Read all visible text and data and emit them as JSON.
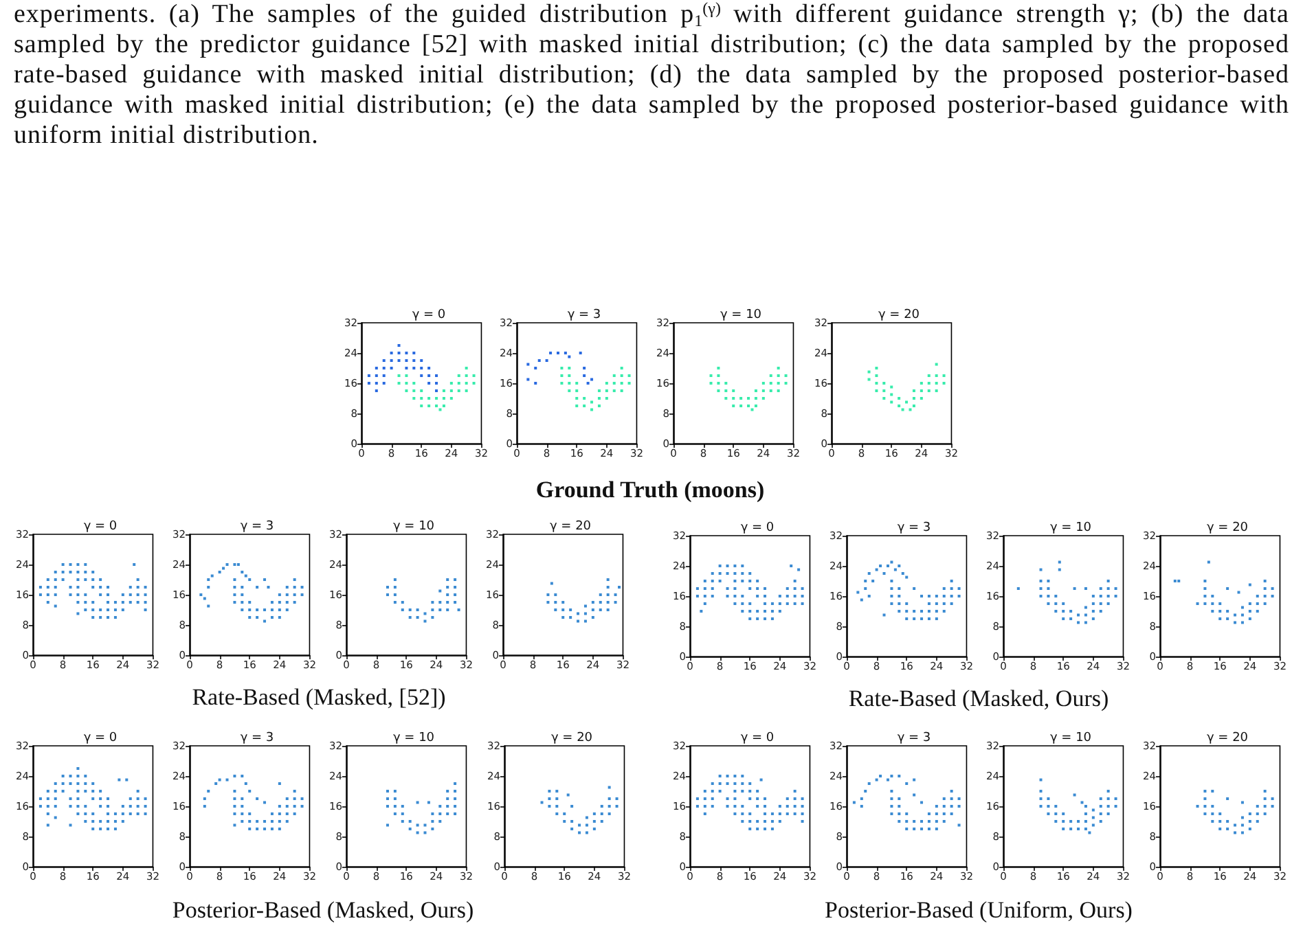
{
  "chart_data": [
    {
      "type": "other",
      "annotations": [
        "experiments. (a) The samples of the guided distribution p$_{1}$$^{(γ)}$ with different guidance strength γ; (b) the data sampled by the predictor guidance [52] with masked initial distribution; (c) the data sampled by the proposed rate-based guidance with masked initial distribution; (d) the data sampled by the proposed posterior-based guidance with masked initial distribution; (e) the data sampled by the proposed posterior-based guidance with uniform initial distribution."
      ]
    },
    {
      "type": "scatter",
      "title": "γ = 0",
      "xlim": [
        0,
        32
      ],
      "ylim": [
        0,
        32
      ],
      "xticks": [
        0,
        8,
        16,
        24,
        32
      ],
      "yticks": [
        0,
        8,
        16,
        24,
        32
      ],
      "marker": "square",
      "series": [
        {
          "color": "#2a6ae0",
          "x": [
            2,
            2,
            4,
            4,
            4,
            4,
            6,
            6,
            6,
            6,
            8,
            8,
            8,
            10,
            10,
            12,
            12,
            12,
            14,
            14,
            14,
            16,
            16,
            16,
            18,
            18,
            18,
            20,
            20,
            20,
            10
          ],
          "values": [
            16,
            18,
            14,
            16,
            18,
            20,
            16,
            18,
            20,
            22,
            20,
            22,
            24,
            22,
            24,
            20,
            22,
            24,
            20,
            22,
            24,
            18,
            20,
            22,
            16,
            18,
            20,
            14,
            16,
            18,
            26
          ]
        },
        {
          "color": "#38ecac",
          "x": [
            10,
            10,
            12,
            12,
            12,
            14,
            14,
            14,
            16,
            16,
            16,
            18,
            18,
            20,
            20,
            22,
            22,
            22,
            24,
            24,
            24,
            26,
            26,
            26,
            28,
            28,
            28,
            28,
            30,
            30,
            21
          ],
          "values": [
            16,
            18,
            14,
            16,
            18,
            12,
            14,
            16,
            10,
            12,
            14,
            10,
            12,
            10,
            12,
            10,
            12,
            14,
            12,
            14,
            16,
            14,
            16,
            18,
            14,
            16,
            18,
            20,
            16,
            18,
            9
          ]
        }
      ]
    },
    {
      "type": "scatter",
      "title": "γ = 3",
      "xlim": [
        0,
        32
      ],
      "ylim": [
        0,
        32
      ],
      "xticks": [
        0,
        8,
        16,
        24,
        32
      ],
      "yticks": [
        0,
        8,
        16,
        24,
        32
      ],
      "marker": "square",
      "series": [
        {
          "color": "#2a6ae0",
          "x": [
            3,
            3,
            5,
            5,
            6,
            8,
            9,
            11,
            13,
            14,
            17,
            18,
            18,
            19,
            20
          ],
          "values": [
            21,
            17,
            16,
            20,
            22,
            22,
            24,
            24,
            24,
            23,
            24,
            20,
            18,
            16,
            17
          ]
        },
        {
          "color": "#38ecac",
          "x": [
            12,
            12,
            12,
            14,
            14,
            14,
            14,
            16,
            16,
            16,
            16,
            18,
            18,
            20,
            20,
            22,
            22,
            22,
            24,
            24,
            24,
            26,
            26,
            26,
            28,
            28,
            28,
            28,
            30,
            30
          ],
          "values": [
            16,
            18,
            20,
            14,
            16,
            18,
            20,
            10,
            12,
            14,
            16,
            10,
            12,
            9,
            11,
            10,
            12,
            14,
            12,
            14,
            16,
            14,
            16,
            18,
            14,
            16,
            18,
            20,
            16,
            18
          ]
        }
      ]
    },
    {
      "type": "scatter",
      "title": "γ = 10",
      "xlim": [
        0,
        32
      ],
      "ylim": [
        0,
        32
      ],
      "xticks": [
        0,
        8,
        16,
        24,
        32
      ],
      "yticks": [
        0,
        8,
        16,
        24,
        32
      ],
      "marker": "square",
      "series": [
        {
          "color": "#38ecac",
          "x": [
            10,
            10,
            12,
            12,
            12,
            12,
            14,
            14,
            14,
            16,
            16,
            16,
            18,
            18,
            20,
            20,
            21,
            22,
            22,
            22,
            24,
            24,
            24,
            26,
            26,
            26,
            28,
            28,
            28,
            28,
            30,
            30
          ],
          "values": [
            16,
            18,
            14,
            16,
            18,
            20,
            12,
            14,
            16,
            10,
            12,
            14,
            10,
            12,
            10,
            12,
            9,
            10,
            12,
            14,
            12,
            14,
            16,
            14,
            16,
            18,
            14,
            16,
            18,
            20,
            16,
            18
          ]
        }
      ]
    },
    {
      "type": "scatter",
      "title": "γ = 20",
      "xlim": [
        0,
        32
      ],
      "ylim": [
        0,
        32
      ],
      "xticks": [
        0,
        8,
        16,
        24,
        32
      ],
      "yticks": [
        0,
        8,
        16,
        24,
        32
      ],
      "marker": "square",
      "series": [
        {
          "color": "#38ecac",
          "x": [
            10,
            10,
            12,
            12,
            12,
            12,
            14,
            14,
            14,
            16,
            16,
            16,
            18,
            18,
            19,
            20,
            21,
            22,
            22,
            22,
            24,
            24,
            24,
            26,
            26,
            26,
            28,
            28,
            28,
            28,
            30,
            30
          ],
          "values": [
            17,
            19,
            14,
            16,
            18,
            20,
            12,
            14,
            16,
            11,
            13,
            15,
            10,
            12,
            9,
            11,
            9,
            10,
            12,
            14,
            12,
            14,
            16,
            14,
            16,
            18,
            14,
            16,
            18,
            21,
            16,
            18
          ]
        }
      ]
    },
    {
      "type": "other",
      "title": "Ground Truth (moons)"
    },
    {
      "type": "scatter",
      "title": "γ = 0",
      "xlim": [
        0,
        32
      ],
      "ylim": [
        0,
        32
      ],
      "xticks": [
        0,
        8,
        16,
        24,
        32
      ],
      "yticks": [
        0,
        8,
        16,
        24,
        32
      ],
      "marker": "square",
      "series": [
        {
          "color": "#3b8bd2",
          "x": [
            2,
            2,
            4,
            4,
            4,
            4,
            6,
            6,
            6,
            6,
            8,
            8,
            8,
            10,
            10,
            12,
            12,
            12,
            14,
            14,
            14,
            16,
            16,
            16,
            18,
            18,
            18,
            20,
            20,
            20,
            10,
            10,
            12,
            12,
            12,
            14,
            14,
            14,
            16,
            16,
            16,
            18,
            18,
            20,
            20,
            22,
            22,
            22,
            24,
            24,
            24,
            26,
            26,
            26,
            28,
            28,
            28,
            28,
            30,
            30,
            27,
            30,
            6,
            12,
            30
          ],
          "values": [
            16,
            18,
            14,
            16,
            18,
            20,
            16,
            18,
            20,
            22,
            20,
            22,
            24,
            22,
            24,
            20,
            22,
            24,
            20,
            22,
            24,
            18,
            20,
            22,
            16,
            18,
            20,
            14,
            16,
            18,
            16,
            18,
            14,
            16,
            18,
            12,
            14,
            16,
            10,
            12,
            14,
            10,
            12,
            10,
            12,
            10,
            12,
            14,
            12,
            14,
            16,
            14,
            16,
            18,
            14,
            16,
            18,
            20,
            16,
            18,
            24,
            12,
            13,
            11,
            14
          ]
        }
      ]
    },
    {
      "type": "scatter",
      "title": "γ = 3",
      "xlim": [
        0,
        32
      ],
      "ylim": [
        0,
        32
      ],
      "xticks": [
        0,
        8,
        16,
        24,
        32
      ],
      "yticks": [
        0,
        8,
        16,
        24,
        32
      ],
      "marker": "square",
      "series": [
        {
          "color": "#3b8bd2",
          "x": [
            3,
            4,
            5,
            5,
            5,
            6,
            8,
            9,
            10,
            12,
            13,
            14,
            15,
            16,
            18,
            20,
            21,
            12,
            12,
            12,
            12,
            14,
            14,
            14,
            14,
            16,
            16,
            16,
            18,
            18,
            20,
            20,
            22,
            22,
            22,
            24,
            24,
            24,
            24,
            26,
            26,
            26,
            26,
            28,
            28,
            28,
            28,
            30,
            30
          ],
          "values": [
            16,
            15,
            13,
            18,
            20,
            21,
            22,
            23,
            24,
            24,
            24,
            22,
            21,
            20,
            18,
            20,
            18,
            14,
            16,
            18,
            20,
            12,
            14,
            16,
            18,
            10,
            12,
            14,
            10,
            12,
            9,
            12,
            10,
            12,
            14,
            10,
            12,
            14,
            16,
            12,
            14,
            16,
            18,
            14,
            16,
            18,
            20,
            16,
            18
          ]
        }
      ]
    },
    {
      "type": "scatter",
      "title": "γ = 10",
      "xlim": [
        0,
        32
      ],
      "ylim": [
        0,
        32
      ],
      "xticks": [
        0,
        8,
        16,
        24,
        32
      ],
      "yticks": [
        0,
        8,
        16,
        24,
        32
      ],
      "marker": "square",
      "series": [
        {
          "color": "#3b8bd2",
          "x": [
            11,
            11,
            13,
            13,
            13,
            13,
            15,
            15,
            17,
            17,
            19,
            19,
            21,
            21,
            23,
            23,
            23,
            25,
            25,
            25,
            27,
            27,
            27,
            27,
            27,
            29,
            29,
            29,
            29,
            30
          ],
          "values": [
            16,
            18,
            14,
            16,
            18,
            20,
            12,
            14,
            10,
            12,
            10,
            12,
            9,
            11,
            10,
            12,
            14,
            12,
            14,
            17,
            12,
            14,
            16,
            18,
            20,
            14,
            16,
            18,
            20,
            12
          ]
        }
      ]
    },
    {
      "type": "scatter",
      "title": "γ = 20",
      "xlim": [
        0,
        32
      ],
      "ylim": [
        0,
        32
      ],
      "xticks": [
        0,
        8,
        16,
        24,
        32
      ],
      "yticks": [
        0,
        8,
        16,
        24,
        32
      ],
      "marker": "square",
      "series": [
        {
          "color": "#3b8bd2",
          "x": [
            12,
            12,
            13,
            14,
            14,
            14,
            16,
            16,
            16,
            18,
            18,
            20,
            20,
            22,
            22,
            22,
            24,
            24,
            24,
            26,
            26,
            26,
            28,
            28,
            28,
            28,
            28,
            30,
            30,
            31
          ],
          "values": [
            14,
            16,
            19,
            12,
            14,
            16,
            10,
            12,
            14,
            10,
            12,
            9,
            11,
            9,
            11,
            13,
            10,
            12,
            14,
            12,
            14,
            16,
            12,
            14,
            16,
            18,
            20,
            14,
            16,
            18
          ]
        }
      ]
    },
    {
      "type": "other",
      "title": "Rate-Based (Masked, [52])"
    },
    {
      "type": "scatter",
      "title": "γ = 0",
      "xlim": [
        0,
        32
      ],
      "ylim": [
        0,
        32
      ],
      "xticks": [
        0,
        8,
        16,
        24,
        32
      ],
      "yticks": [
        0,
        8,
        16,
        24,
        32
      ],
      "marker": "square",
      "series": [
        {
          "color": "#3b8bd2",
          "x": [
            2,
            2,
            4,
            4,
            4,
            4,
            6,
            6,
            6,
            6,
            8,
            8,
            8,
            10,
            10,
            12,
            12,
            12,
            14,
            14,
            14,
            16,
            16,
            16,
            18,
            18,
            18,
            20,
            20,
            20,
            10,
            10,
            12,
            12,
            12,
            14,
            14,
            14,
            16,
            16,
            16,
            18,
            18,
            20,
            20,
            22,
            22,
            22,
            24,
            24,
            24,
            26,
            26,
            26,
            28,
            28,
            28,
            28,
            30,
            30,
            3,
            27,
            29,
            30
          ],
          "values": [
            16,
            18,
            14,
            16,
            18,
            20,
            16,
            18,
            20,
            22,
            20,
            22,
            24,
            22,
            24,
            20,
            22,
            24,
            20,
            22,
            24,
            18,
            20,
            22,
            16,
            18,
            20,
            14,
            16,
            18,
            16,
            18,
            14,
            16,
            18,
            12,
            14,
            16,
            10,
            12,
            14,
            10,
            12,
            10,
            12,
            10,
            12,
            14,
            12,
            14,
            16,
            14,
            16,
            18,
            14,
            16,
            18,
            20,
            16,
            18,
            12,
            24,
            23,
            14
          ]
        }
      ]
    },
    {
      "type": "scatter",
      "title": "γ = 3",
      "xlim": [
        0,
        32
      ],
      "ylim": [
        0,
        32
      ],
      "xticks": [
        0,
        8,
        16,
        24,
        32
      ],
      "yticks": [
        0,
        8,
        16,
        24,
        32
      ],
      "marker": "square",
      "series": [
        {
          "color": "#3b8bd2",
          "x": [
            3,
            4,
            5,
            5,
            6,
            6,
            7,
            8,
            9,
            10,
            11,
            12,
            13,
            14,
            15,
            16,
            18,
            20,
            22,
            10,
            12,
            12,
            12,
            12,
            14,
            14,
            14,
            14,
            16,
            16,
            16,
            18,
            18,
            20,
            20,
            22,
            22,
            22,
            24,
            24,
            24,
            24,
            26,
            26,
            26,
            26,
            28,
            28,
            28,
            28,
            30,
            30
          ],
          "values": [
            17,
            15,
            18,
            20,
            16,
            22,
            20,
            23,
            24,
            22,
            24,
            25,
            23,
            24,
            22,
            21,
            18,
            16,
            16,
            11,
            14,
            16,
            18,
            20,
            12,
            14,
            16,
            18,
            10,
            12,
            14,
            10,
            12,
            10,
            12,
            10,
            12,
            14,
            10,
            12,
            14,
            16,
            12,
            14,
            16,
            18,
            14,
            16,
            18,
            20,
            16,
            18
          ]
        }
      ]
    },
    {
      "type": "scatter",
      "title": "γ = 10",
      "xlim": [
        0,
        32
      ],
      "ylim": [
        0,
        32
      ],
      "xticks": [
        0,
        8,
        16,
        24,
        32
      ],
      "yticks": [
        0,
        8,
        16,
        24,
        32
      ],
      "marker": "square",
      "series": [
        {
          "color": "#3b8bd2",
          "x": [
            4,
            10,
            15,
            15,
            19,
            22,
            10,
            10,
            10,
            12,
            12,
            12,
            12,
            14,
            14,
            14,
            16,
            16,
            16,
            18,
            18,
            20,
            20,
            22,
            22,
            22,
            24,
            24,
            24,
            24,
            26,
            26,
            26,
            26,
            28,
            28,
            28,
            28,
            30,
            30
          ],
          "values": [
            18,
            23,
            23,
            25,
            18,
            18,
            16,
            18,
            20,
            14,
            16,
            18,
            20,
            12,
            14,
            16,
            10,
            12,
            14,
            10,
            12,
            9,
            11,
            9,
            11,
            13,
            10,
            12,
            14,
            16,
            12,
            14,
            16,
            18,
            14,
            16,
            18,
            20,
            16,
            18
          ]
        }
      ]
    },
    {
      "type": "scatter",
      "title": "γ = 20",
      "xlim": [
        0,
        32
      ],
      "ylim": [
        0,
        32
      ],
      "xticks": [
        0,
        8,
        16,
        24,
        32
      ],
      "yticks": [
        0,
        8,
        16,
        24,
        32
      ],
      "marker": "square",
      "series": [
        {
          "color": "#3b8bd2",
          "x": [
            4,
            5,
            13,
            18,
            21,
            24,
            10,
            12,
            12,
            12,
            12,
            14,
            14,
            14,
            16,
            16,
            16,
            18,
            18,
            20,
            20,
            22,
            22,
            22,
            24,
            24,
            24,
            26,
            26,
            26,
            28,
            28,
            28,
            28,
            30,
            30
          ],
          "values": [
            20,
            20,
            25,
            18,
            17,
            19,
            14,
            14,
            16,
            18,
            20,
            12,
            14,
            16,
            10,
            12,
            14,
            10,
            12,
            9,
            11,
            9,
            11,
            13,
            10,
            12,
            14,
            12,
            14,
            16,
            14,
            16,
            18,
            20,
            16,
            18
          ]
        }
      ]
    },
    {
      "type": "other",
      "title": "Rate-Based (Masked, Ours)"
    },
    {
      "type": "scatter",
      "title": "γ = 0",
      "xlim": [
        0,
        32
      ],
      "ylim": [
        0,
        32
      ],
      "xticks": [
        0,
        8,
        16,
        24,
        32
      ],
      "yticks": [
        0,
        8,
        16,
        24,
        32
      ],
      "marker": "square",
      "series": [
        {
          "color": "#3b8bd2",
          "x": [
            2,
            2,
            4,
            4,
            4,
            4,
            6,
            6,
            6,
            6,
            8,
            8,
            8,
            10,
            10,
            12,
            12,
            12,
            14,
            14,
            14,
            16,
            16,
            16,
            18,
            18,
            18,
            20,
            20,
            20,
            10,
            10,
            12,
            12,
            12,
            14,
            14,
            14,
            16,
            16,
            16,
            18,
            18,
            20,
            20,
            22,
            22,
            22,
            24,
            24,
            24,
            26,
            26,
            26,
            28,
            28,
            28,
            28,
            30,
            30,
            4,
            6,
            10,
            12,
            23,
            25,
            30
          ],
          "values": [
            16,
            18,
            14,
            16,
            18,
            20,
            16,
            18,
            20,
            22,
            20,
            22,
            24,
            22,
            24,
            20,
            22,
            24,
            20,
            22,
            24,
            18,
            20,
            22,
            16,
            18,
            20,
            14,
            16,
            18,
            16,
            18,
            14,
            16,
            18,
            12,
            14,
            16,
            10,
            12,
            14,
            10,
            12,
            10,
            12,
            10,
            12,
            14,
            12,
            14,
            16,
            14,
            16,
            18,
            14,
            16,
            18,
            20,
            16,
            18,
            11,
            13,
            11,
            26,
            23,
            23,
            14
          ]
        }
      ]
    },
    {
      "type": "scatter",
      "title": "γ = 3",
      "xlim": [
        0,
        32
      ],
      "ylim": [
        0,
        32
      ],
      "xticks": [
        0,
        8,
        16,
        24,
        32
      ],
      "yticks": [
        0,
        8,
        16,
        24,
        32
      ],
      "marker": "square",
      "series": [
        {
          "color": "#3b8bd2",
          "x": [
            4,
            4,
            5,
            7,
            8,
            10,
            12,
            14,
            15,
            16,
            18,
            20,
            24,
            12,
            12,
            12,
            12,
            12,
            14,
            14,
            14,
            14,
            16,
            16,
            16,
            18,
            18,
            20,
            20,
            22,
            22,
            22,
            24,
            24,
            24,
            24,
            26,
            26,
            26,
            26,
            28,
            28,
            28,
            28,
            30,
            30
          ],
          "values": [
            16,
            18,
            20,
            22,
            23,
            23,
            24,
            24,
            22,
            20,
            18,
            17,
            22,
            11,
            14,
            16,
            18,
            20,
            12,
            14,
            16,
            18,
            10,
            12,
            14,
            10,
            12,
            10,
            12,
            10,
            12,
            14,
            10,
            12,
            14,
            16,
            12,
            14,
            16,
            18,
            14,
            16,
            18,
            20,
            16,
            18
          ]
        }
      ]
    },
    {
      "type": "scatter",
      "title": "γ = 10",
      "xlim": [
        0,
        32
      ],
      "ylim": [
        0,
        32
      ],
      "xticks": [
        0,
        8,
        16,
        24,
        32
      ],
      "yticks": [
        0,
        8,
        16,
        24,
        32
      ],
      "marker": "square",
      "series": [
        {
          "color": "#3b8bd2",
          "x": [
            11,
            19,
            22,
            29,
            11,
            11,
            11,
            13,
            13,
            13,
            13,
            15,
            15,
            15,
            17,
            17,
            19,
            19,
            21,
            21,
            23,
            23,
            23,
            25,
            25,
            25,
            27,
            27,
            27,
            27,
            29,
            29,
            29,
            29
          ],
          "values": [
            11,
            17,
            17,
            22,
            16,
            18,
            20,
            14,
            16,
            18,
            20,
            12,
            14,
            16,
            10,
            12,
            9,
            11,
            9,
            11,
            10,
            12,
            14,
            12,
            14,
            16,
            14,
            16,
            18,
            20,
            14,
            16,
            18,
            20
          ]
        }
      ]
    },
    {
      "type": "scatter",
      "title": "γ = 20",
      "xlim": [
        0,
        32
      ],
      "ylim": [
        0,
        32
      ],
      "xticks": [
        0,
        8,
        16,
        24,
        32
      ],
      "yticks": [
        0,
        8,
        16,
        24,
        32
      ],
      "marker": "square",
      "series": [
        {
          "color": "#3b8bd2",
          "x": [
            10,
            12,
            12,
            12,
            14,
            14,
            14,
            14,
            16,
            16,
            17,
            18,
            18,
            18,
            20,
            20,
            22,
            22,
            22,
            24,
            24,
            24,
            26,
            26,
            26,
            28,
            28,
            28,
            28,
            30,
            30
          ],
          "values": [
            17,
            16,
            18,
            20,
            14,
            16,
            18,
            20,
            12,
            14,
            19,
            16,
            10,
            12,
            9,
            11,
            9,
            11,
            13,
            10,
            12,
            14,
            12,
            14,
            16,
            14,
            16,
            18,
            21,
            16,
            18
          ]
        }
      ]
    },
    {
      "type": "other",
      "title": "Posterior-Based (Masked, Ours)"
    },
    {
      "type": "scatter",
      "title": "γ = 0",
      "xlim": [
        0,
        32
      ],
      "ylim": [
        0,
        32
      ],
      "xticks": [
        0,
        8,
        16,
        24,
        32
      ],
      "yticks": [
        0,
        8,
        16,
        24,
        32
      ],
      "marker": "square",
      "series": [
        {
          "color": "#3b8bd2",
          "x": [
            2,
            2,
            4,
            4,
            4,
            4,
            6,
            6,
            6,
            6,
            8,
            8,
            8,
            10,
            10,
            12,
            12,
            12,
            14,
            14,
            14,
            16,
            16,
            16,
            18,
            18,
            18,
            20,
            20,
            20,
            10,
            10,
            12,
            12,
            12,
            14,
            14,
            14,
            16,
            16,
            16,
            18,
            18,
            20,
            20,
            22,
            22,
            22,
            24,
            24,
            24,
            26,
            26,
            26,
            28,
            28,
            28,
            28,
            30,
            30,
            19,
            30,
            30
          ],
          "values": [
            16,
            18,
            14,
            16,
            18,
            20,
            16,
            18,
            20,
            22,
            20,
            22,
            24,
            22,
            24,
            20,
            22,
            24,
            20,
            22,
            24,
            18,
            20,
            22,
            16,
            18,
            20,
            14,
            16,
            18,
            16,
            18,
            14,
            16,
            18,
            12,
            14,
            16,
            10,
            12,
            14,
            10,
            12,
            10,
            12,
            10,
            12,
            14,
            12,
            14,
            16,
            14,
            16,
            18,
            14,
            16,
            18,
            20,
            16,
            18,
            23,
            14,
            12
          ]
        }
      ]
    },
    {
      "type": "scatter",
      "title": "γ = 3",
      "xlim": [
        0,
        32
      ],
      "ylim": [
        0,
        32
      ],
      "xticks": [
        0,
        8,
        16,
        24,
        32
      ],
      "yticks": [
        0,
        8,
        16,
        24,
        32
      ],
      "marker": "square",
      "series": [
        {
          "color": "#3b8bd2",
          "x": [
            2,
            4,
            4,
            5,
            6,
            8,
            9,
            11,
            12,
            14,
            16,
            18,
            18,
            20,
            30,
            12,
            12,
            12,
            12,
            14,
            14,
            14,
            14,
            16,
            16,
            16,
            18,
            18,
            20,
            20,
            22,
            22,
            22,
            24,
            24,
            24,
            24,
            26,
            26,
            26,
            26,
            28,
            28,
            28,
            28,
            30,
            30
          ],
          "values": [
            17,
            16,
            18,
            20,
            22,
            23,
            24,
            23,
            24,
            24,
            22,
            23,
            19,
            17,
            11,
            14,
            16,
            18,
            20,
            12,
            14,
            16,
            18,
            10,
            12,
            14,
            10,
            12,
            10,
            12,
            10,
            12,
            14,
            10,
            12,
            14,
            16,
            12,
            14,
            16,
            18,
            14,
            16,
            18,
            20,
            16,
            18
          ]
        }
      ]
    },
    {
      "type": "scatter",
      "title": "γ = 10",
      "xlim": [
        0,
        32
      ],
      "ylim": [
        0,
        32
      ],
      "xticks": [
        0,
        8,
        16,
        24,
        32
      ],
      "yticks": [
        0,
        8,
        16,
        24,
        32
      ],
      "marker": "square",
      "series": [
        {
          "color": "#3b8bd2",
          "x": [
            10,
            19,
            21,
            22,
            23,
            10,
            10,
            10,
            12,
            12,
            12,
            14,
            14,
            14,
            16,
            16,
            16,
            18,
            18,
            20,
            20,
            22,
            22,
            22,
            24,
            24,
            24,
            26,
            26,
            26,
            26,
            28,
            28,
            28,
            28,
            30,
            30
          ],
          "values": [
            23,
            19,
            17,
            16,
            9,
            16,
            18,
            20,
            14,
            16,
            18,
            12,
            14,
            16,
            10,
            12,
            14,
            10,
            12,
            10,
            12,
            10,
            12,
            14,
            11,
            13,
            15,
            12,
            14,
            16,
            18,
            14,
            16,
            18,
            20,
            16,
            18
          ]
        }
      ]
    },
    {
      "type": "scatter",
      "title": "γ = 20",
      "xlim": [
        0,
        32
      ],
      "ylim": [
        0,
        32
      ],
      "xticks": [
        0,
        8,
        16,
        24,
        32
      ],
      "yticks": [
        0,
        8,
        16,
        24,
        32
      ],
      "marker": "square",
      "series": [
        {
          "color": "#3b8bd2",
          "x": [
            10,
            12,
            12,
            12,
            12,
            14,
            14,
            14,
            14,
            16,
            16,
            16,
            18,
            18,
            18,
            20,
            20,
            22,
            22,
            22,
            22,
            24,
            24,
            24,
            26,
            26,
            26,
            28,
            28,
            28,
            28,
            30,
            30
          ],
          "values": [
            16,
            14,
            16,
            18,
            20,
            12,
            14,
            16,
            20,
            10,
            12,
            14,
            18,
            10,
            12,
            9,
            11,
            9,
            11,
            13,
            17,
            10,
            12,
            14,
            12,
            14,
            16,
            14,
            16,
            18,
            20,
            16,
            18
          ]
        }
      ]
    },
    {
      "type": "other",
      "title": "Posterior-Based (Uniform, Ours)"
    }
  ]
}
